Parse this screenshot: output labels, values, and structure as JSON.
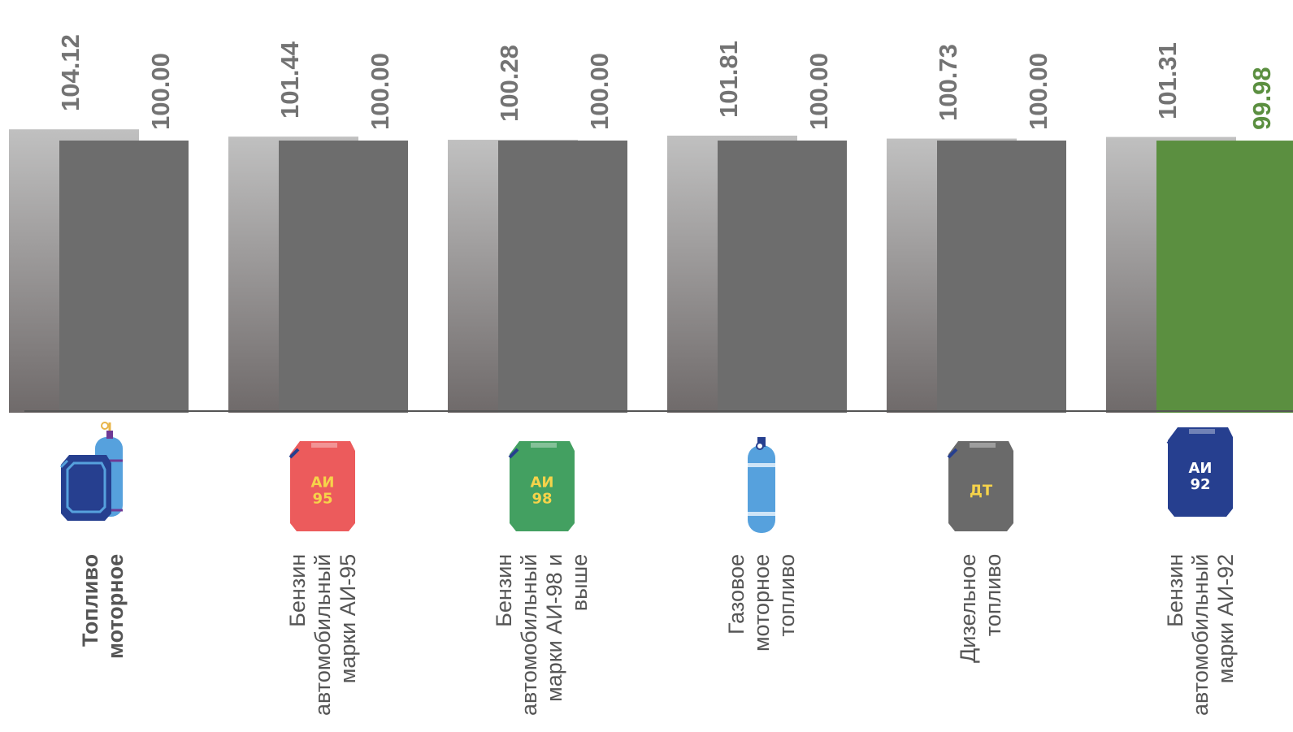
{
  "chart_data": {
    "type": "bar",
    "categories": [
      "Топливо\nмоторное",
      "Бензин\nавтомобильный\nмарки АИ-95",
      "Бензин\nавтомобильный\nмарки АИ-98 и\nвыше",
      "Газовое\nмоторное\nтопливо",
      "Дизельное\nтопливо",
      "Бензин\nавтомобильный\nмарки АИ-92"
    ],
    "category_bold": [
      true,
      false,
      false,
      false,
      false,
      false
    ],
    "series": [
      {
        "values": [
          104.12,
          101.44,
          100.28,
          101.81,
          100.73,
          101.31
        ],
        "labels": [
          "104.12",
          "101.44",
          "100.28",
          "101.81",
          "100.73",
          "101.31"
        ],
        "color": "#b5b5b5"
      },
      {
        "values": [
          100.0,
          100.0,
          100.0,
          100.0,
          100.0,
          99.98
        ],
        "labels": [
          "100.00",
          "100.00",
          "100.00",
          "100.00",
          "100.00",
          "99.98"
        ],
        "color": "#6d6d6d",
        "highlight_color": "#5b8f40",
        "highlight_index": 5
      }
    ],
    "title": "",
    "xlabel": "",
    "ylabel": "",
    "grid": false,
    "legend": "none"
  },
  "icons": [
    {
      "name": "fuel-canister-and-gas-cylinder-icon",
      "text": ""
    },
    {
      "name": "ai95-canister-icon",
      "text": [
        "АИ",
        "95"
      ],
      "color": "#ec5b5c"
    },
    {
      "name": "ai98-canister-icon",
      "text": [
        "АИ",
        "98"
      ],
      "color": "#43a061"
    },
    {
      "name": "gas-cylinder-icon",
      "text": ""
    },
    {
      "name": "diesel-canister-icon",
      "text": [
        "ДТ"
      ],
      "color": "#6a6a6a"
    },
    {
      "name": "ai92-canister-icon",
      "text": [
        "АИ",
        "92"
      ],
      "color": "#263f8f"
    }
  ]
}
